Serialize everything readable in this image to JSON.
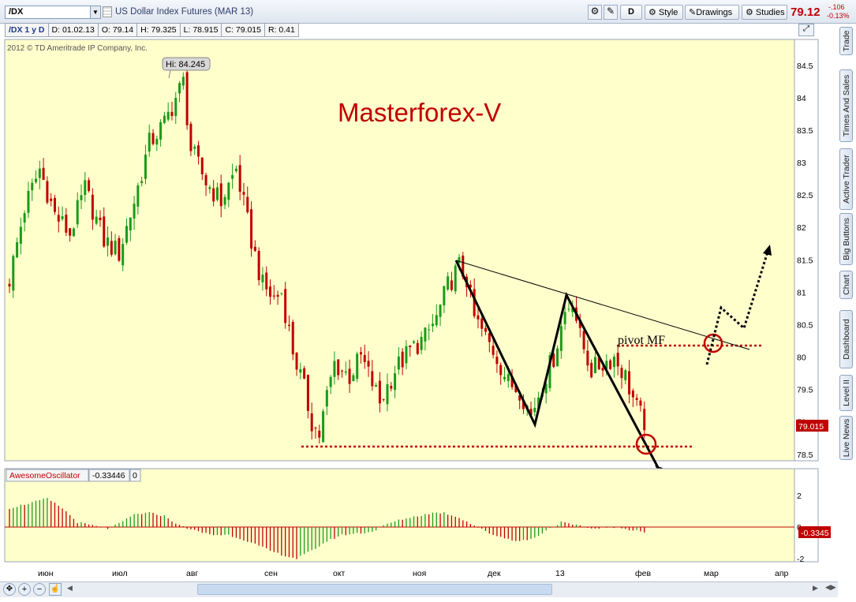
{
  "toolbar": {
    "symbol": "/DX",
    "title": "US Dollar Index Futures (MAR 13)",
    "period_btn": "D",
    "style_btn": "Style",
    "drawings_btn": "Drawings",
    "studies_btn": "Studies",
    "last_price": "79.12",
    "change": "-.106",
    "change_pct": "-0.13%",
    "colors": {
      "up": "#1b9a1b",
      "down": "#c00000",
      "bg": "#ffffcc"
    }
  },
  "info": {
    "symbol_period": "/DX 1 y D",
    "date": "D: 01.02.13",
    "open": "O: 79.14",
    "high": "H: 79.325",
    "low": "L: 78.915",
    "close": "C: 79.015",
    "range": "R: 0.41"
  },
  "copyright": "2012 © TD Ameritrade IP Company, Inc.",
  "hi_label": "Hi: 84.245",
  "watermark": "Masterforex-V",
  "pivot_label": "pivot MF",
  "price_badge": "79.015",
  "osc": {
    "name": "AwesomeOscillator",
    "value": "-0.33446",
    "zero": "0",
    "badge": "-0.3345"
  },
  "right_tabs": [
    "Trade",
    "Times And Sales",
    "Active Trader",
    "Big Buttons",
    "Chart",
    "Dashboard",
    "Level II",
    "Live News"
  ],
  "chart_data": [
    {
      "type": "candlestick",
      "ylim": [
        78.4,
        84.9
      ],
      "yticks": [
        "84.5",
        "84",
        "83.5",
        "83",
        "82.5",
        "82",
        "81.5",
        "81",
        "80.5",
        "80",
        "79.5",
        "79",
        "78.5"
      ],
      "xticks": [
        "июн",
        "июл",
        "авг",
        "сен",
        "окт",
        "ноя",
        "дек",
        "13",
        "фев",
        "мар",
        "апр"
      ],
      "close_path": [
        [
          0,
          81.2
        ],
        [
          4,
          82.3
        ],
        [
          8,
          82.9
        ],
        [
          12,
          82.2
        ],
        [
          16,
          81.9
        ],
        [
          20,
          82.6
        ],
        [
          25,
          81.8
        ],
        [
          29,
          81.6
        ],
        [
          33,
          82.4
        ],
        [
          37,
          83.3
        ],
        [
          41,
          83.6
        ],
        [
          44,
          84.0
        ],
        [
          46,
          84.24
        ],
        [
          48,
          83.2
        ],
        [
          52,
          82.7
        ],
        [
          56,
          82.4
        ],
        [
          60,
          82.9
        ],
        [
          64,
          81.8
        ],
        [
          67,
          81.1
        ],
        [
          70,
          80.9
        ],
        [
          72,
          81.0
        ],
        [
          75,
          80.1
        ],
        [
          78,
          79.5
        ],
        [
          80,
          79.0
        ],
        [
          82,
          78.8
        ],
        [
          84,
          79.4
        ],
        [
          86,
          79.9
        ],
        [
          90,
          79.7
        ],
        [
          93,
          80.0
        ],
        [
          96,
          79.6
        ],
        [
          98,
          79.3
        ],
        [
          102,
          79.8
        ],
        [
          106,
          80.1
        ],
        [
          110,
          80.3
        ],
        [
          113,
          80.6
        ],
        [
          116,
          81.1
        ],
        [
          119,
          81.4
        ],
        [
          121,
          81.2
        ],
        [
          123,
          80.6
        ],
        [
          126,
          80.3
        ],
        [
          129,
          80.0
        ],
        [
          132,
          79.6
        ],
        [
          135,
          79.5
        ],
        [
          138,
          79.1
        ],
        [
          141,
          79.6
        ],
        [
          144,
          80.0
        ],
        [
          147,
          80.7
        ],
        [
          149,
          80.9
        ],
        [
          151,
          80.3
        ],
        [
          154,
          79.8
        ],
        [
          157,
          79.9
        ],
        [
          160,
          80.0
        ],
        [
          163,
          79.7
        ],
        [
          166,
          79.2
        ],
        [
          168,
          79.0
        ]
      ]
    },
    {
      "type": "bar",
      "name": "AwesomeOscillator",
      "ylim": [
        -2.1,
        2.4
      ],
      "yticks": [
        "2",
        "0",
        "-2"
      ],
      "values_path": [
        [
          0,
          1.2
        ],
        [
          5,
          1.5
        ],
        [
          10,
          1.8
        ],
        [
          14,
          1.2
        ],
        [
          18,
          0.3
        ],
        [
          22,
          0.1
        ],
        [
          26,
          -0.1
        ],
        [
          29,
          0.2
        ],
        [
          33,
          0.8
        ],
        [
          37,
          0.9
        ],
        [
          41,
          0.7
        ],
        [
          45,
          0.1
        ],
        [
          50,
          -0.3
        ],
        [
          54,
          -0.5
        ],
        [
          58,
          -0.5
        ],
        [
          62,
          -0.8
        ],
        [
          66,
          -1.2
        ],
        [
          70,
          -1.6
        ],
        [
          74,
          -1.9
        ],
        [
          76,
          -2.0
        ],
        [
          80,
          -1.5
        ],
        [
          84,
          -0.9
        ],
        [
          88,
          -0.5
        ],
        [
          92,
          -0.4
        ],
        [
          96,
          -0.3
        ],
        [
          100,
          0.2
        ],
        [
          104,
          0.5
        ],
        [
          108,
          0.7
        ],
        [
          112,
          0.9
        ],
        [
          115,
          0.9
        ],
        [
          119,
          0.6
        ],
        [
          123,
          0.1
        ],
        [
          127,
          -0.4
        ],
        [
          131,
          -0.7
        ],
        [
          135,
          -0.9
        ],
        [
          139,
          -0.7
        ],
        [
          142,
          -0.2
        ],
        [
          146,
          0.3
        ],
        [
          150,
          0.1
        ],
        [
          154,
          -0.1
        ],
        [
          158,
          0.0
        ],
        [
          162,
          -0.1
        ],
        [
          166,
          -0.2
        ],
        [
          168,
          -0.33
        ]
      ]
    }
  ]
}
